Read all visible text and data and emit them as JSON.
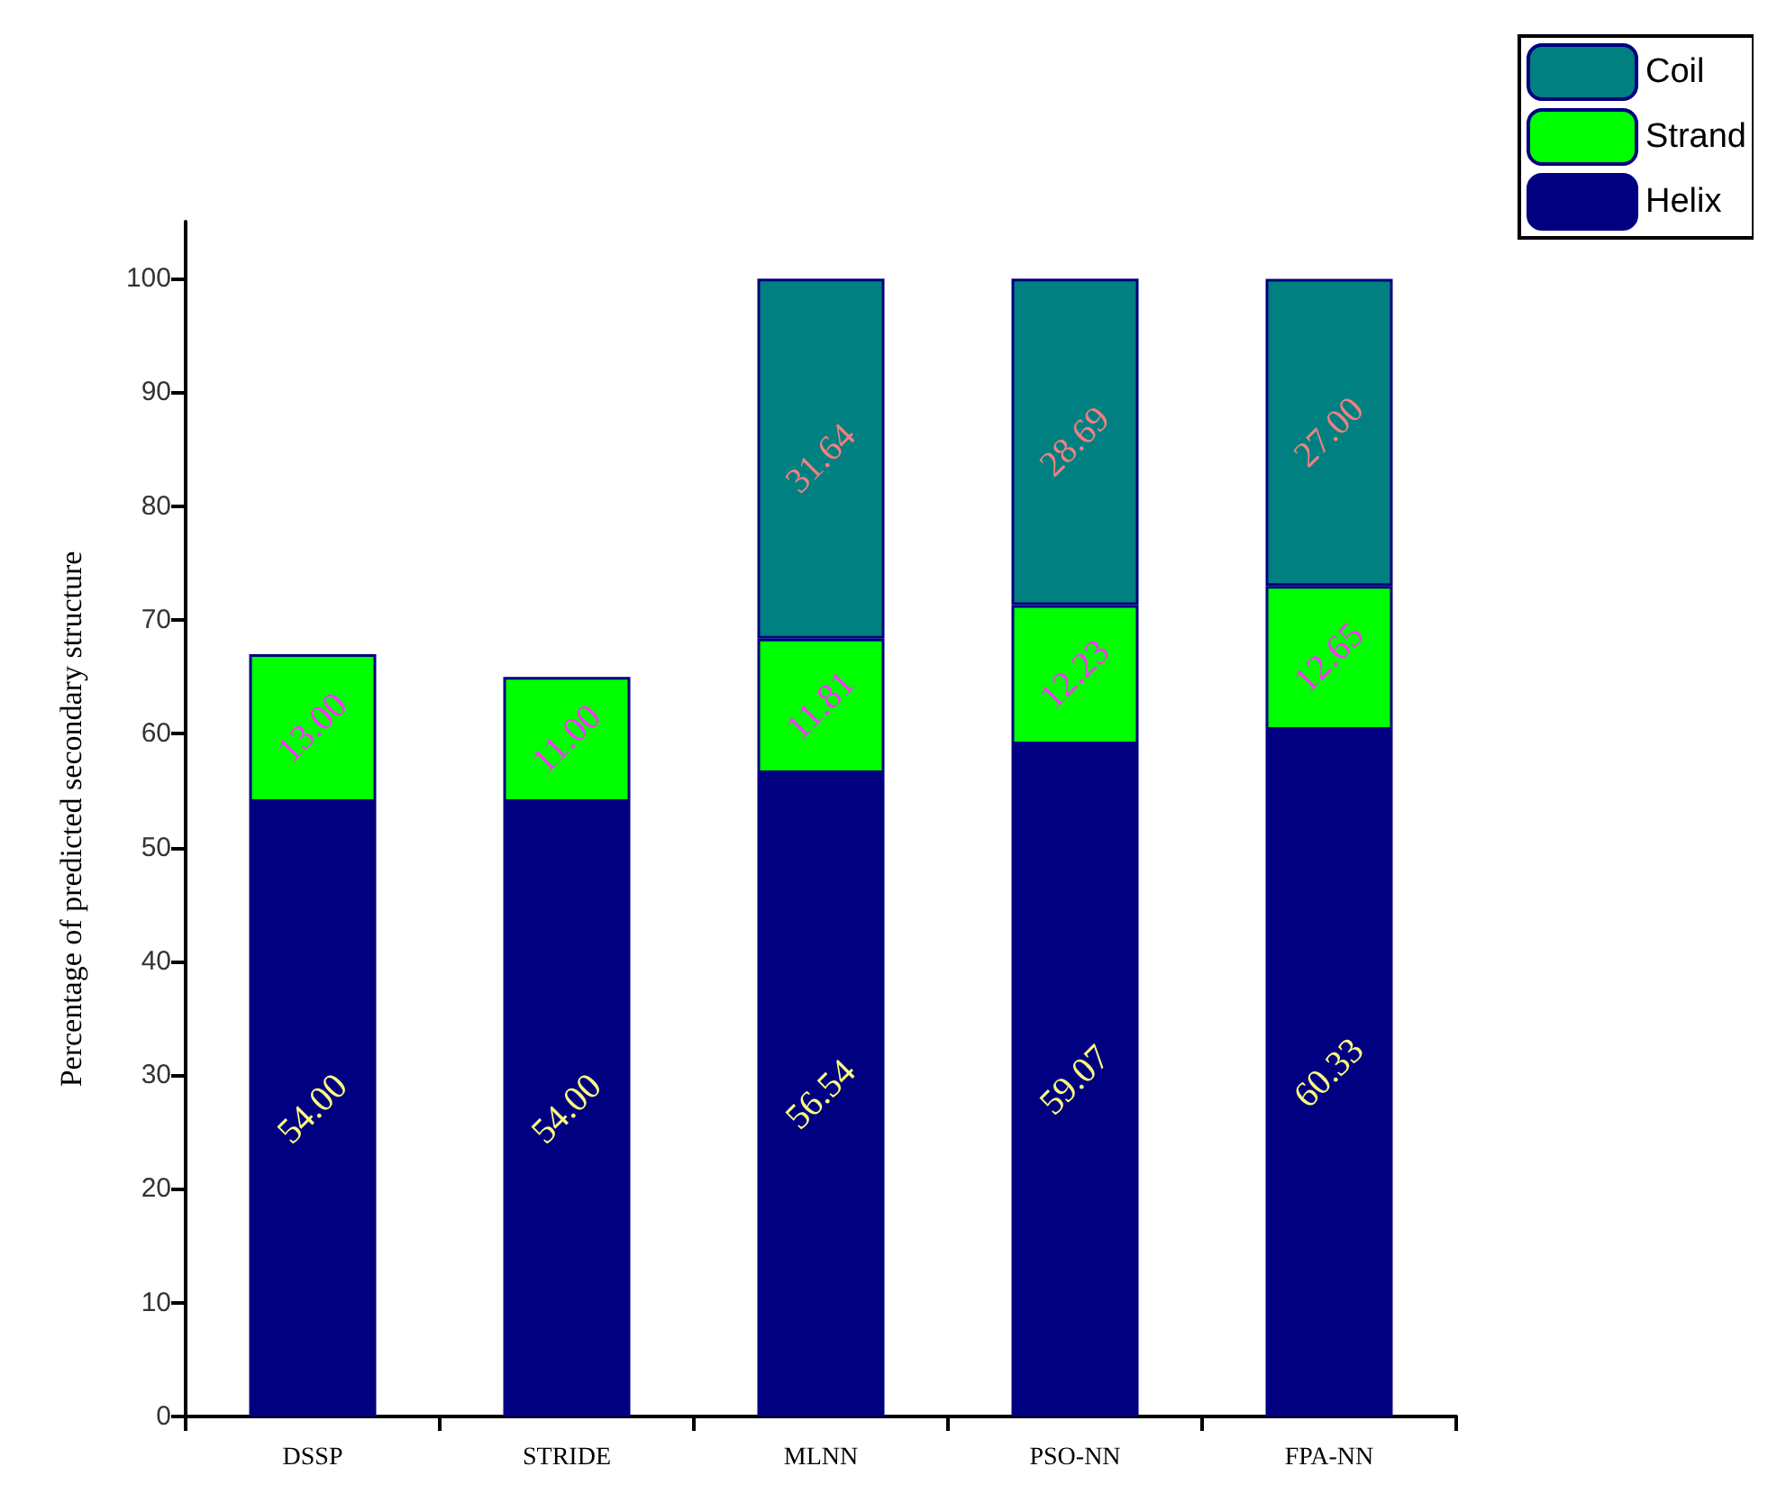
{
  "chart_data": {
    "type": "bar",
    "stacked": true,
    "ylabel": "Percentage of predicted secondary structure",
    "categories": [
      "DSSP",
      "STRIDE",
      "MLNN",
      "PSO-NN",
      "FPA-NN"
    ],
    "series": [
      {
        "name": "Helix",
        "color": "#000080",
        "values": [
          54,
          54,
          56.54,
          59.07,
          60.33
        ],
        "value_labels": [
          "54.00",
          "54.00",
          "56.54",
          "59.07",
          "60.33"
        ]
      },
      {
        "name": "Strand",
        "color": "#00ff00",
        "values": [
          13,
          11,
          11.81,
          12.23,
          12.65
        ],
        "value_labels": [
          "13.00",
          "11.00",
          "11.81",
          "12.23",
          "12.65"
        ]
      },
      {
        "name": "Coil",
        "color": "#008080",
        "values": [
          null,
          null,
          31.64,
          28.69,
          27
        ],
        "value_labels": [
          null,
          null,
          "31.64",
          "28.69",
          "27.00"
        ]
      }
    ],
    "ylim": [
      0,
      105
    ],
    "yticks": [
      0,
      10,
      20,
      30,
      40,
      50,
      60,
      70,
      80,
      90,
      100
    ],
    "grid": false,
    "legend": "top right"
  }
}
